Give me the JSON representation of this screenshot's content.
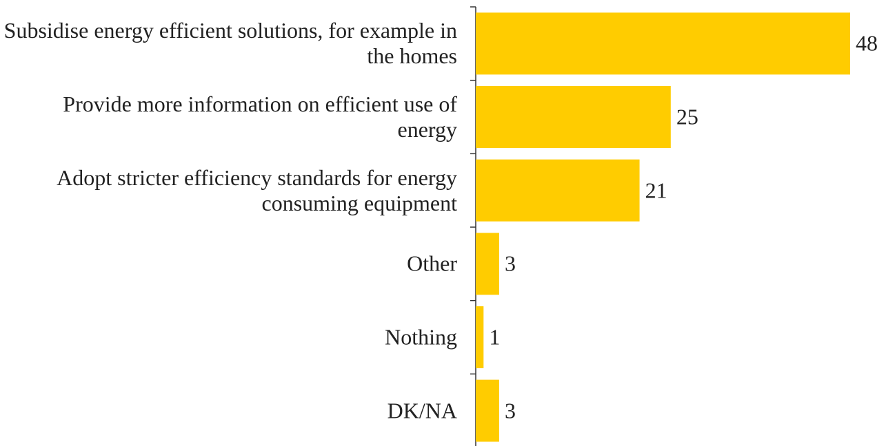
{
  "chart_data": {
    "type": "bar",
    "orientation": "horizontal",
    "categories": [
      "Subsidise energy efficient solutions, for example in the homes",
      "Provide more information on efficient use of energy",
      "Adopt stricter efficiency standards for energy consuming equipment",
      "Other",
      "Nothing",
      "DK/NA"
    ],
    "values": [
      48,
      25,
      21,
      3,
      1,
      3
    ],
    "color": "#ffcc00"
  }
}
